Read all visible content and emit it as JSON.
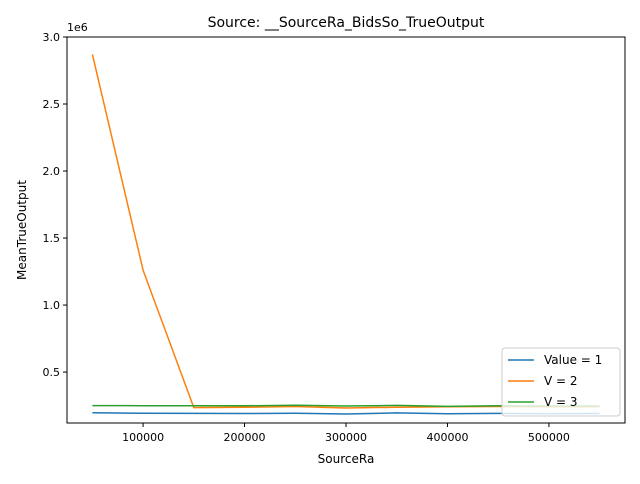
{
  "chart_data": {
    "type": "line",
    "title": "Source: __SourceRa_BidsSo_TrueOutput",
    "xlabel": "SourceRa",
    "ylabel": "MeanTrueOutput",
    "y_offset_label": "1e6",
    "xlim": [
      25000,
      575000
    ],
    "ylim": [
      0.12,
      3.0
    ],
    "y_units": "1e6",
    "x_ticks": [
      100000,
      200000,
      300000,
      400000,
      500000
    ],
    "x_tick_labels": [
      "100000",
      "200000",
      "300000",
      "400000",
      "500000"
    ],
    "y_ticks": [
      0.5,
      1.0,
      1.5,
      2.0,
      2.5,
      3.0
    ],
    "y_tick_labels": [
      "0.5",
      "1.0",
      "1.5",
      "2.0",
      "2.5",
      "3.0"
    ],
    "grid": false,
    "legend_position": "bottom-right",
    "x": [
      50000,
      100000,
      150000,
      200000,
      250000,
      300000,
      350000,
      400000,
      450000,
      500000,
      550000
    ],
    "series": [
      {
        "name": "Value = 1",
        "color": "#1f77b4",
        "values": [
          0.196,
          0.193,
          0.192,
          0.191,
          0.193,
          0.187,
          0.195,
          0.189,
          0.192,
          0.19,
          0.191
        ]
      },
      {
        "name": "V = 2",
        "color": "#ff7f0e",
        "values": [
          2.87,
          1.26,
          0.235,
          0.237,
          0.243,
          0.232,
          0.238,
          0.241,
          0.243,
          0.24,
          0.241
        ]
      },
      {
        "name": "V = 3",
        "color": "#2ca02c",
        "values": [
          0.25,
          0.249,
          0.248,
          0.248,
          0.253,
          0.247,
          0.251,
          0.244,
          0.248,
          0.247,
          0.246
        ]
      }
    ]
  }
}
